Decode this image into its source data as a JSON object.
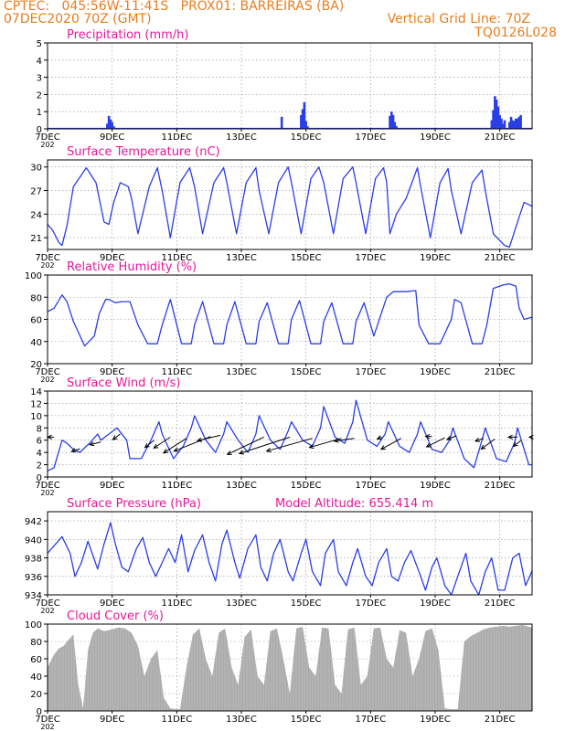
{
  "header": {
    "line1": "CPTEC:   045:56W-11:41S   PROX01: BARREIRAS (BA)",
    "line2": "07DEC2020 70Z (GMT)",
    "line3": "Vertical Grid Line: 70Z",
    "line4": "TQ0126L028"
  },
  "colors": {
    "header": "#e87d1e",
    "title": "#e8179a",
    "line": "#2a3ee8",
    "bars": "#2a3ee8",
    "cloud": "#aaaaaa",
    "arrow": "#000000"
  },
  "x_axis": {
    "range_days": [
      7,
      22
    ],
    "ticks": [
      {
        "day": 7,
        "label": "7DEC"
      },
      {
        "day": 9,
        "label": "9DEC"
      },
      {
        "day": 11,
        "label": "11DEC"
      },
      {
        "day": 13,
        "label": "13DEC"
      },
      {
        "day": 15,
        "label": "15DEC"
      },
      {
        "day": 17,
        "label": "17DEC"
      },
      {
        "day": 19,
        "label": "19DEC"
      },
      {
        "day": 21,
        "label": "21DEC"
      }
    ],
    "year_stub": "202"
  },
  "chart_data": [
    {
      "id": "precip",
      "type": "bar",
      "title": "Precipitation (mm/h)",
      "ylim": [
        0,
        5
      ],
      "yticks": [
        0,
        1,
        2,
        3,
        4,
        5
      ],
      "grid": true,
      "x": [
        8.85,
        8.9,
        8.95,
        9.0,
        9.05,
        14.25,
        14.85,
        14.9,
        14.95,
        15.0,
        15.05,
        17.6,
        17.65,
        17.7,
        17.75,
        17.8,
        20.75,
        20.8,
        20.85,
        20.9,
        20.95,
        21.0,
        21.05,
        21.1,
        21.15,
        21.3,
        21.35,
        21.4,
        21.45,
        21.5,
        21.55,
        21.6,
        21.65
      ],
      "values": [
        0.3,
        0.75,
        0.55,
        0.4,
        0.15,
        0.7,
        0.8,
        1.15,
        1.55,
        0.45,
        0.15,
        0.75,
        1.0,
        0.8,
        0.4,
        0.15,
        0.5,
        1.1,
        1.9,
        1.7,
        1.3,
        0.8,
        0.6,
        0.3,
        0.5,
        0.4,
        0.7,
        0.5,
        0.45,
        0.6,
        0.6,
        0.7,
        0.8
      ]
    },
    {
      "id": "temp",
      "type": "line",
      "title": "Surface Temperature (nC)",
      "ylim": [
        19.5,
        30.9
      ],
      "yticks": [
        21,
        24,
        27,
        30
      ],
      "grid": true,
      "x": [
        7.0,
        7.15,
        7.35,
        7.45,
        7.6,
        7.8,
        8.2,
        8.5,
        8.75,
        8.9,
        9.05,
        9.25,
        9.5,
        9.6,
        9.8,
        10.15,
        10.4,
        10.55,
        10.8,
        11.1,
        11.4,
        11.55,
        11.8,
        12.15,
        12.45,
        12.55,
        12.85,
        13.15,
        13.45,
        13.55,
        13.85,
        14.15,
        14.45,
        14.55,
        14.85,
        15.15,
        15.4,
        15.55,
        15.85,
        16.15,
        16.45,
        16.55,
        16.85,
        17.15,
        17.4,
        17.5,
        17.6,
        17.8,
        18.1,
        18.45,
        18.55,
        18.85,
        19.15,
        19.4,
        19.5,
        19.8,
        20.15,
        20.45,
        20.55,
        20.8,
        21.15,
        21.3,
        21.55,
        21.75,
        22.0
      ],
      "values": [
        22.7,
        22.0,
        20.4,
        20.0,
        22.5,
        27.5,
        29.9,
        28.0,
        23.0,
        22.7,
        25.5,
        28.0,
        27.5,
        26.0,
        21.5,
        27.5,
        29.9,
        27.0,
        21.0,
        28.0,
        29.9,
        27.5,
        21.5,
        28.0,
        29.9,
        28.0,
        21.5,
        28.0,
        29.9,
        27.0,
        21.5,
        28.0,
        30.0,
        28.0,
        21.5,
        28.5,
        30.0,
        28.0,
        21.5,
        28.5,
        30.0,
        28.0,
        21.5,
        28.5,
        29.9,
        28.0,
        21.5,
        24.0,
        26.0,
        29.9,
        27.5,
        21.0,
        28.0,
        29.8,
        27.0,
        21.5,
        28.0,
        29.6,
        27.0,
        21.5,
        20.0,
        19.8,
        23.0,
        25.5,
        25.0
      ]
    },
    {
      "id": "rh",
      "type": "line",
      "title": "Relative Humidity (%)",
      "ylim": [
        20,
        100
      ],
      "yticks": [
        20,
        40,
        60,
        80,
        100
      ],
      "grid": true,
      "x": [
        7.0,
        7.2,
        7.45,
        7.6,
        7.8,
        8.15,
        8.45,
        8.6,
        8.8,
        8.9,
        9.1,
        9.3,
        9.55,
        9.8,
        10.1,
        10.4,
        10.55,
        10.8,
        11.15,
        11.45,
        11.55,
        11.8,
        12.15,
        12.45,
        12.55,
        12.8,
        13.15,
        13.45,
        13.55,
        13.8,
        14.15,
        14.45,
        14.55,
        14.8,
        15.15,
        15.45,
        15.55,
        15.8,
        16.15,
        16.45,
        16.55,
        16.8,
        17.1,
        17.5,
        17.7,
        18.1,
        18.4,
        18.5,
        18.8,
        19.15,
        19.5,
        19.6,
        19.8,
        20.15,
        20.45,
        20.6,
        20.8,
        21.1,
        21.3,
        21.5,
        21.6,
        21.75,
        22.0
      ],
      "values": [
        67,
        70,
        82,
        76,
        58,
        36,
        45,
        65,
        78,
        78,
        75,
        76,
        76,
        55,
        38,
        38,
        55,
        78,
        38,
        38,
        55,
        76,
        38,
        38,
        55,
        76,
        38,
        38,
        58,
        75,
        38,
        38,
        60,
        77,
        38,
        38,
        58,
        75,
        38,
        38,
        58,
        75,
        45,
        80,
        85,
        85,
        86,
        55,
        38,
        38,
        60,
        78,
        75,
        38,
        38,
        55,
        88,
        91,
        92,
        90,
        70,
        60,
        62
      ]
    },
    {
      "id": "wind",
      "type": "line",
      "title": "Surface Wind (m/s)",
      "ylim": [
        0,
        14
      ],
      "yticks": [
        0,
        2,
        4,
        6,
        8,
        10,
        12,
        14
      ],
      "grid": true,
      "x": [
        7.0,
        7.2,
        7.45,
        7.6,
        7.8,
        8.0,
        8.3,
        8.55,
        8.65,
        8.9,
        9.15,
        9.45,
        9.55,
        9.9,
        10.2,
        10.45,
        10.55,
        10.9,
        11.2,
        11.45,
        11.55,
        11.9,
        12.2,
        12.45,
        12.55,
        12.9,
        13.2,
        13.45,
        13.55,
        13.9,
        14.2,
        14.45,
        14.55,
        14.9,
        15.2,
        15.45,
        15.55,
        15.9,
        16.2,
        16.45,
        16.55,
        16.9,
        17.2,
        17.45,
        17.55,
        17.9,
        18.2,
        18.45,
        18.55,
        18.9,
        19.2,
        19.45,
        19.55,
        19.9,
        20.2,
        20.45,
        20.55,
        20.9,
        21.2,
        21.45,
        21.55,
        21.9,
        22.0
      ],
      "values": [
        1.0,
        1.5,
        6.0,
        5.5,
        4.5,
        4.0,
        5.5,
        7.0,
        6.0,
        7.0,
        8.0,
        6.0,
        3.0,
        3.0,
        6.0,
        9.0,
        7.0,
        3.0,
        5.0,
        8.0,
        10.0,
        6.0,
        4.0,
        7.0,
        9.0,
        6.0,
        4.0,
        7.0,
        10.0,
        6.0,
        4.5,
        7.5,
        9.0,
        6.0,
        5.0,
        8.0,
        11.5,
        6.5,
        5.5,
        9.0,
        12.5,
        6.0,
        5.0,
        7.0,
        9.0,
        5.0,
        4.0,
        7.0,
        9.0,
        4.5,
        4.0,
        6.0,
        8.0,
        3.0,
        1.5,
        6.0,
        8.0,
        3.0,
        2.5,
        5.5,
        8.0,
        2.0,
        2.0
      ],
      "vectors": [
        {
          "x": 7.2,
          "y": 6.5,
          "dx": 7,
          "dy": 0
        },
        {
          "x": 8.0,
          "y": 4.6,
          "dx": 9,
          "dy": 3
        },
        {
          "x": 8.65,
          "y": 5.7,
          "dx": 12,
          "dy": 3
        },
        {
          "x": 9.25,
          "y": 7.0,
          "dx": 8,
          "dy": 6
        },
        {
          "x": 10.3,
          "y": 6.0,
          "dx": 10,
          "dy": 8
        },
        {
          "x": 10.8,
          "y": 6.5,
          "dx": 18,
          "dy": 12
        },
        {
          "x": 11.3,
          "y": 6.3,
          "dx": 25,
          "dy": 16
        },
        {
          "x": 12.05,
          "y": 6.6,
          "dx": 40,
          "dy": 16
        },
        {
          "x": 12.35,
          "y": 6.8,
          "dx": 25,
          "dy": 6
        },
        {
          "x": 13.7,
          "y": 6.5,
          "dx": 40,
          "dy": 19
        },
        {
          "x": 14.5,
          "y": 6.5,
          "dx": 55,
          "dy": 18
        },
        {
          "x": 15.2,
          "y": 6.3,
          "dx": 50,
          "dy": 14
        },
        {
          "x": 16.1,
          "y": 6.3,
          "dx": 35,
          "dy": 10
        },
        {
          "x": 16.5,
          "y": 6.3,
          "dx": 22,
          "dy": 3
        },
        {
          "x": 17.35,
          "y": 6.5,
          "dx": 5,
          "dy": 2
        },
        {
          "x": 17.95,
          "y": 6.3,
          "dx": 22,
          "dy": 12
        },
        {
          "x": 18.9,
          "y": 6.6,
          "dx": 7,
          "dy": 0
        },
        {
          "x": 19.3,
          "y": 6.4,
          "dx": 20,
          "dy": 10
        },
        {
          "x": 19.65,
          "y": 6.7,
          "dx": 10,
          "dy": 4
        },
        {
          "x": 20.5,
          "y": 6.3,
          "dx": 9,
          "dy": 3
        },
        {
          "x": 20.85,
          "y": 6.2,
          "dx": 15,
          "dy": 11
        },
        {
          "x": 21.55,
          "y": 6.5,
          "dx": 10,
          "dy": 0
        },
        {
          "x": 21.65,
          "y": 5.9,
          "dx": 8,
          "dy": 6
        },
        {
          "x": 22.0,
          "y": 6.5,
          "dx": 3,
          "dy": 0
        }
      ]
    },
    {
      "id": "pres",
      "type": "line",
      "title": "Surface Pressure (hPa)",
      "annotation": "Model Altitude: 655.414  m",
      "ylim": [
        934,
        943
      ],
      "yticks": [
        934,
        936,
        938,
        940,
        942
      ],
      "grid": true,
      "x": [
        7.0,
        7.25,
        7.45,
        7.7,
        7.85,
        8.05,
        8.25,
        8.55,
        8.75,
        8.95,
        9.1,
        9.3,
        9.5,
        9.75,
        9.95,
        10.15,
        10.35,
        10.55,
        10.75,
        10.95,
        11.15,
        11.35,
        11.55,
        11.8,
        12.0,
        12.2,
        12.4,
        12.55,
        12.8,
        12.95,
        13.2,
        13.45,
        13.6,
        13.8,
        14.0,
        14.2,
        14.45,
        14.6,
        14.85,
        15.0,
        15.2,
        15.45,
        15.6,
        15.85,
        16.0,
        16.25,
        16.45,
        16.6,
        16.85,
        17.05,
        17.25,
        17.5,
        17.65,
        17.85,
        18.05,
        18.25,
        18.5,
        18.7,
        18.9,
        19.05,
        19.3,
        19.5,
        19.7,
        19.95,
        20.1,
        20.35,
        20.55,
        20.75,
        20.95,
        21.15,
        21.4,
        21.6,
        21.8,
        22.0
      ],
      "values": [
        938.5,
        939.5,
        940.3,
        938.5,
        936.0,
        937.5,
        939.8,
        936.8,
        939.5,
        941.8,
        939.5,
        937.0,
        936.5,
        939.0,
        940.2,
        937.5,
        936.0,
        937.5,
        939.0,
        937.5,
        940.5,
        936.5,
        938.8,
        940.5,
        937.5,
        935.5,
        939.5,
        941.0,
        937.5,
        935.8,
        939.0,
        940.5,
        937.0,
        935.5,
        938.5,
        940.0,
        936.5,
        935.5,
        938.5,
        940.0,
        936.5,
        935.0,
        938.5,
        940.0,
        936.5,
        935.0,
        937.5,
        939.0,
        936.0,
        935.0,
        937.5,
        939.0,
        936.0,
        935.5,
        937.5,
        938.8,
        936.5,
        934.5,
        937.0,
        938.0,
        935.0,
        934.0,
        936.0,
        938.5,
        935.5,
        934.0,
        936.5,
        938.0,
        934.5,
        934.5,
        938.0,
        938.5,
        935.0,
        936.6
      ]
    },
    {
      "id": "cloud",
      "type": "area",
      "title": "Cloud Cover (%)",
      "ylim": [
        0,
        100
      ],
      "yticks": [
        0,
        20,
        40,
        60,
        80,
        100
      ],
      "grid": true,
      "x": [
        7.0,
        7.2,
        7.35,
        7.5,
        7.65,
        7.8,
        7.95,
        8.1,
        8.25,
        8.4,
        8.55,
        8.75,
        9.0,
        9.2,
        9.4,
        9.6,
        9.8,
        10.0,
        10.2,
        10.4,
        10.6,
        10.8,
        11.0,
        11.1,
        11.3,
        11.5,
        11.7,
        11.9,
        12.1,
        12.3,
        12.5,
        12.7,
        12.9,
        13.1,
        13.3,
        13.5,
        13.7,
        13.9,
        14.1,
        14.3,
        14.5,
        14.7,
        14.9,
        15.1,
        15.3,
        15.5,
        15.7,
        15.9,
        16.1,
        16.3,
        16.5,
        16.7,
        16.9,
        17.1,
        17.3,
        17.5,
        17.7,
        17.9,
        18.1,
        18.3,
        18.5,
        18.7,
        18.9,
        19.1,
        19.3,
        19.5,
        19.7,
        19.9,
        20.1,
        20.3,
        20.5,
        20.7,
        20.9,
        21.1,
        21.3,
        21.5,
        21.7,
        21.9,
        22.0
      ],
      "values": [
        50,
        65,
        72,
        75,
        82,
        88,
        30,
        3,
        70,
        90,
        95,
        92,
        94,
        96,
        95,
        90,
        75,
        40,
        60,
        70,
        15,
        3,
        2,
        2,
        50,
        88,
        95,
        60,
        40,
        90,
        95,
        50,
        30,
        85,
        94,
        40,
        30,
        92,
        95,
        60,
        20,
        95,
        97,
        50,
        40,
        96,
        95,
        30,
        20,
        94,
        96,
        30,
        40,
        95,
        96,
        60,
        50,
        93,
        90,
        40,
        60,
        92,
        95,
        70,
        3,
        2,
        2,
        80,
        86,
        90,
        94,
        96,
        97,
        98,
        97,
        98,
        99,
        97,
        96
      ]
    }
  ]
}
